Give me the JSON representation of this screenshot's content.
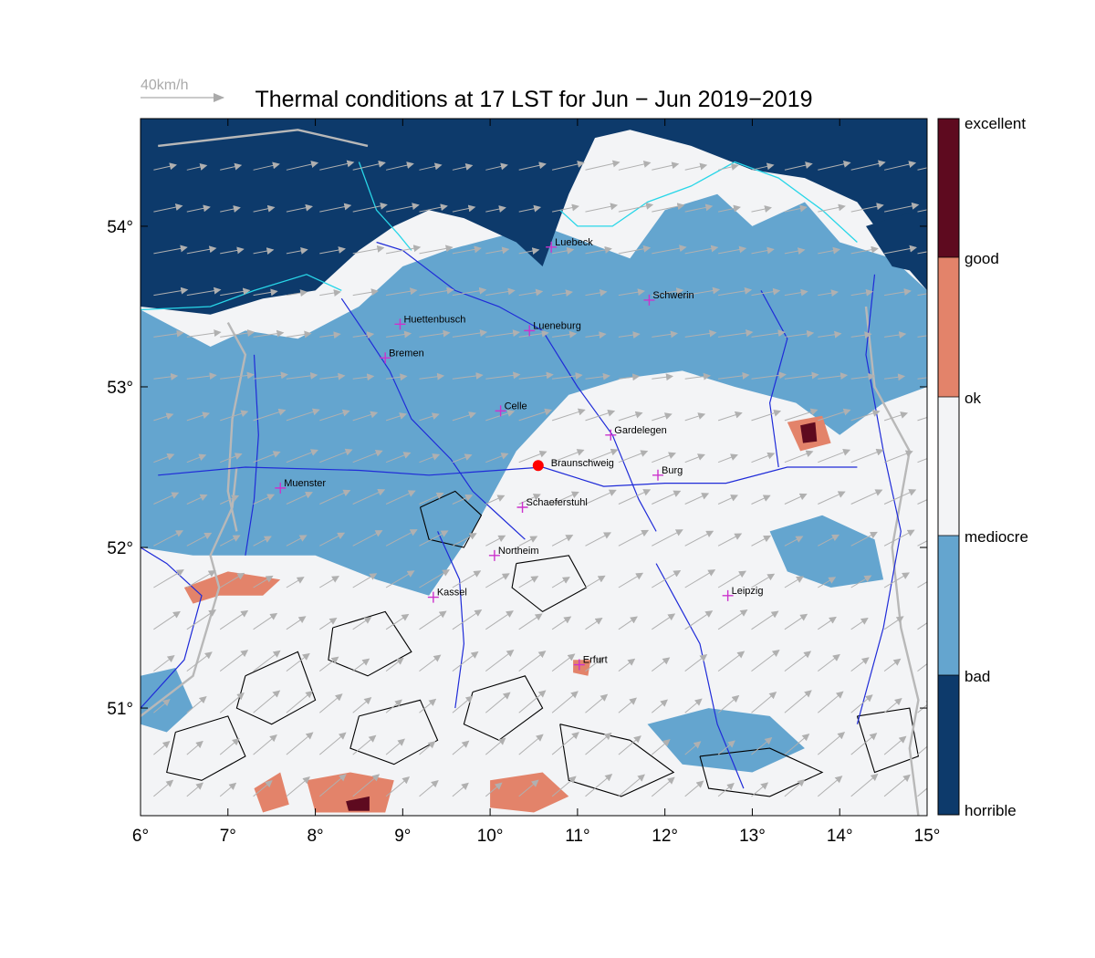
{
  "title": "Thermal conditions at 17 LST for Jun − Jun  2019−2019",
  "wind_legend": {
    "label": "40km/h"
  },
  "colors": {
    "horrible": "#0d3a6b",
    "bad": "#64a5cf",
    "mediocre": "#f3f4f6",
    "ok": "#f3f4f6",
    "good": "#e3836a",
    "excellent": "#5e0a1f",
    "rivers": "#1f2bd8",
    "coast": "#28d6e8",
    "borders": "#b8b8b8",
    "arrows": "#b0b0b0",
    "terrain_contours": "#000000",
    "city_marker": "#cc33cc",
    "reference_point": "#ff0000"
  },
  "map": {
    "lon_range": [
      6,
      15
    ],
    "lat_range": [
      50.33,
      54.67
    ],
    "x_ticks": [
      "6°",
      "7°",
      "8°",
      "9°",
      "10°",
      "11°",
      "12°",
      "13°",
      "14°",
      "15°"
    ],
    "x_tick_values": [
      6,
      7,
      8,
      9,
      10,
      11,
      12,
      13,
      14,
      15
    ],
    "y_ticks": [
      "51°",
      "52°",
      "53°",
      "54°"
    ],
    "y_tick_values": [
      51,
      52,
      53,
      54
    ]
  },
  "colorbar": {
    "labels": [
      "excellent",
      "good",
      "ok",
      "mediocre",
      "bad",
      "horrible"
    ]
  },
  "cities": [
    {
      "name": "Luebeck",
      "lon": 10.7,
      "lat": 53.87
    },
    {
      "name": "Schwerin",
      "lon": 11.82,
      "lat": 53.54
    },
    {
      "name": "Huettenbusch",
      "lon": 8.97,
      "lat": 53.39
    },
    {
      "name": "Lueneburg",
      "lon": 10.45,
      "lat": 53.35
    },
    {
      "name": "Bremen",
      "lon": 8.8,
      "lat": 53.18
    },
    {
      "name": "Celle",
      "lon": 10.12,
      "lat": 52.85
    },
    {
      "name": "Gardelegen",
      "lon": 11.38,
      "lat": 52.7
    },
    {
      "name": "Burg",
      "lon": 11.92,
      "lat": 52.45
    },
    {
      "name": "Muenster",
      "lon": 7.6,
      "lat": 52.37
    },
    {
      "name": "Schaeferstuhl",
      "lon": 10.37,
      "lat": 52.25
    },
    {
      "name": "Northeim",
      "lon": 10.05,
      "lat": 51.95
    },
    {
      "name": "Kassel",
      "lon": 9.35,
      "lat": 51.69
    },
    {
      "name": "Leipzig",
      "lon": 12.72,
      "lat": 51.7
    },
    {
      "name": "Erfurt",
      "lon": 11.02,
      "lat": 51.27
    }
  ],
  "reference_point": {
    "name": "Braunschweig",
    "lon": 10.55,
    "lat": 52.51
  },
  "regions": [
    {
      "class": "bad",
      "points": [
        [
          6,
          54.0
        ],
        [
          6,
          53.48
        ],
        [
          6.8,
          53.25
        ],
        [
          7.2,
          53.35
        ],
        [
          7.8,
          53.3
        ],
        [
          8.5,
          53.5
        ],
        [
          9.0,
          53.75
        ],
        [
          9.5,
          53.85
        ],
        [
          10.2,
          53.95
        ],
        [
          10.6,
          54.0
        ],
        [
          11.1,
          53.9
        ],
        [
          11.6,
          53.8
        ],
        [
          12.0,
          54.1
        ],
        [
          12.6,
          54.2
        ],
        [
          13.0,
          54.0
        ],
        [
          13.6,
          54.15
        ],
        [
          14.0,
          53.9
        ],
        [
          14.6,
          53.8
        ],
        [
          15,
          53.6
        ],
        [
          15,
          53.0
        ],
        [
          14.5,
          52.9
        ],
        [
          14.0,
          52.7
        ],
        [
          13.5,
          52.9
        ],
        [
          12.8,
          53.0
        ],
        [
          12.2,
          53.1
        ],
        [
          11.5,
          53.05
        ],
        [
          10.9,
          52.95
        ],
        [
          10.3,
          52.6
        ],
        [
          9.8,
          52.1
        ],
        [
          9.3,
          51.7
        ],
        [
          8.7,
          51.8
        ],
        [
          8.0,
          51.95
        ],
        [
          7.3,
          51.95
        ],
        [
          6.6,
          51.95
        ],
        [
          6,
          52.0
        ]
      ]
    },
    {
      "class": "bad",
      "points": [
        [
          6,
          51.2
        ],
        [
          6.4,
          51.25
        ],
        [
          6.6,
          51.0
        ],
        [
          6.3,
          50.85
        ],
        [
          6,
          50.9
        ]
      ]
    },
    {
      "class": "bad",
      "points": [
        [
          13.2,
          52.1
        ],
        [
          13.8,
          52.2
        ],
        [
          14.4,
          52.05
        ],
        [
          14.5,
          51.8
        ],
        [
          13.9,
          51.75
        ],
        [
          13.4,
          51.85
        ]
      ]
    },
    {
      "class": "bad",
      "points": [
        [
          11.8,
          50.9
        ],
        [
          12.5,
          51.0
        ],
        [
          13.2,
          50.95
        ],
        [
          13.6,
          50.75
        ],
        [
          13.0,
          50.6
        ],
        [
          12.2,
          50.65
        ]
      ]
    },
    {
      "class": "horrible",
      "points": [
        [
          6,
          54.67
        ],
        [
          15,
          54.67
        ],
        [
          15,
          53.6
        ],
        [
          14.6,
          53.85
        ],
        [
          14.2,
          54.15
        ],
        [
          13.6,
          54.3
        ],
        [
          13.0,
          54.35
        ],
        [
          12.3,
          54.5
        ],
        [
          11.6,
          54.6
        ],
        [
          11.2,
          54.55
        ],
        [
          10.9,
          54.2
        ],
        [
          10.6,
          53.75
        ],
        [
          10.3,
          53.9
        ],
        [
          9.7,
          54.05
        ],
        [
          9.3,
          54.1
        ],
        [
          8.9,
          54.0
        ],
        [
          8.5,
          53.85
        ],
        [
          8.0,
          53.6
        ],
        [
          7.4,
          53.55
        ],
        [
          6.8,
          53.45
        ],
        [
          6,
          53.5
        ]
      ]
    },
    {
      "class": "horrible",
      "points": [
        [
          14.3,
          54.0
        ],
        [
          14.9,
          54.1
        ],
        [
          15,
          53.7
        ],
        [
          14.6,
          53.75
        ]
      ]
    },
    {
      "class": "good",
      "points": [
        [
          6.5,
          51.75
        ],
        [
          7.0,
          51.85
        ],
        [
          7.6,
          51.8
        ],
        [
          7.4,
          51.7
        ],
        [
          6.9,
          51.7
        ],
        [
          6.6,
          51.65
        ]
      ]
    },
    {
      "class": "good",
      "points": [
        [
          7.3,
          50.5
        ],
        [
          7.6,
          50.6
        ],
        [
          7.7,
          50.4
        ],
        [
          7.4,
          50.35
        ]
      ]
    },
    {
      "class": "good",
      "points": [
        [
          7.9,
          50.55
        ],
        [
          8.4,
          50.6
        ],
        [
          8.9,
          50.55
        ],
        [
          8.8,
          50.35
        ],
        [
          8.0,
          50.35
        ]
      ]
    },
    {
      "class": "good",
      "points": [
        [
          10.0,
          50.55
        ],
        [
          10.6,
          50.6
        ],
        [
          10.9,
          50.45
        ],
        [
          10.5,
          50.35
        ],
        [
          10.0,
          50.38
        ]
      ]
    },
    {
      "class": "good",
      "points": [
        [
          13.4,
          52.78
        ],
        [
          13.8,
          52.82
        ],
        [
          13.9,
          52.65
        ],
        [
          13.55,
          52.6
        ]
      ]
    },
    {
      "class": "good",
      "points": [
        [
          10.95,
          51.3
        ],
        [
          11.15,
          51.3
        ],
        [
          11.12,
          51.2
        ],
        [
          10.95,
          51.22
        ]
      ]
    },
    {
      "class": "excellent",
      "points": [
        [
          13.55,
          52.76
        ],
        [
          13.72,
          52.78
        ],
        [
          13.74,
          52.66
        ],
        [
          13.58,
          52.65
        ]
      ]
    },
    {
      "class": "excellent",
      "points": [
        [
          8.35,
          50.42
        ],
        [
          8.62,
          50.45
        ],
        [
          8.62,
          50.36
        ],
        [
          8.38,
          50.36
        ]
      ]
    }
  ],
  "rivers": [
    [
      [
        10.4,
        52.05
      ],
      [
        10.0,
        52.25
      ],
      [
        9.8,
        52.35
      ],
      [
        9.55,
        52.55
      ],
      [
        9.1,
        52.8
      ],
      [
        8.85,
        53.1
      ],
      [
        8.55,
        53.35
      ],
      [
        8.3,
        53.55
      ]
    ],
    [
      [
        11.9,
        52.1
      ],
      [
        11.7,
        52.3
      ],
      [
        11.4,
        52.7
      ],
      [
        11.0,
        53.0
      ],
      [
        10.6,
        53.35
      ],
      [
        10.1,
        53.5
      ],
      [
        9.6,
        53.6
      ],
      [
        9.0,
        53.85
      ],
      [
        8.7,
        53.9
      ]
    ],
    [
      [
        7.2,
        51.95
      ],
      [
        7.3,
        52.3
      ],
      [
        7.35,
        52.7
      ],
      [
        7.3,
        53.2
      ]
    ],
    [
      [
        6.2,
        52.45
      ],
      [
        7.2,
        52.5
      ],
      [
        8.5,
        52.48
      ],
      [
        9.3,
        52.45
      ],
      [
        10.6,
        52.5
      ],
      [
        11.3,
        52.38
      ],
      [
        12.0,
        52.4
      ],
      [
        12.7,
        52.4
      ],
      [
        13.4,
        52.5
      ],
      [
        14.2,
        52.5
      ]
    ],
    [
      [
        14.2,
        50.9
      ],
      [
        14.5,
        51.5
      ],
      [
        14.7,
        52.1
      ],
      [
        14.5,
        52.6
      ],
      [
        14.3,
        53.2
      ],
      [
        14.4,
        53.7
      ]
    ],
    [
      [
        12.9,
        50.5
      ],
      [
        12.6,
        50.9
      ],
      [
        12.4,
        51.4
      ],
      [
        12.1,
        51.7
      ],
      [
        11.9,
        51.9
      ]
    ],
    [
      [
        9.6,
        51.0
      ],
      [
        9.7,
        51.4
      ],
      [
        9.65,
        51.8
      ],
      [
        9.4,
        52.1
      ]
    ],
    [
      [
        6.0,
        51.0
      ],
      [
        6.5,
        51.3
      ],
      [
        6.7,
        51.7
      ],
      [
        6.3,
        51.9
      ],
      [
        6.0,
        52.0
      ]
    ],
    [
      [
        13.3,
        52.5
      ],
      [
        13.2,
        52.9
      ],
      [
        13.4,
        53.3
      ],
      [
        13.1,
        53.6
      ]
    ]
  ],
  "coast": [
    [
      [
        8.5,
        54.4
      ],
      [
        8.7,
        54.1
      ],
      [
        8.95,
        53.95
      ],
      [
        9.1,
        53.85
      ]
    ],
    [
      [
        10.8,
        54.1
      ],
      [
        11.0,
        54.0
      ],
      [
        11.4,
        54.0
      ],
      [
        11.8,
        54.15
      ],
      [
        12.3,
        54.25
      ],
      [
        12.8,
        54.4
      ],
      [
        13.3,
        54.3
      ],
      [
        13.8,
        54.1
      ],
      [
        14.2,
        53.9
      ]
    ],
    [
      [
        6.0,
        53.48
      ],
      [
        6.8,
        53.5
      ],
      [
        7.3,
        53.6
      ],
      [
        7.9,
        53.7
      ],
      [
        8.3,
        53.6
      ]
    ]
  ],
  "borders": [
    [
      [
        6.2,
        54.5
      ],
      [
        7.8,
        54.6
      ],
      [
        8.6,
        54.5
      ]
    ],
    [
      [
        7.1,
        52.1
      ],
      [
        7.0,
        52.35
      ],
      [
        7.05,
        52.8
      ],
      [
        7.2,
        53.2
      ],
      [
        7.0,
        53.4
      ]
    ],
    [
      [
        6.0,
        50.95
      ],
      [
        6.6,
        51.2
      ],
      [
        6.9,
        51.75
      ],
      [
        6.8,
        51.95
      ],
      [
        7.05,
        52.25
      ],
      [
        7.1,
        52.5
      ]
    ],
    [
      [
        14.9,
        50.33
      ],
      [
        14.8,
        50.75
      ],
      [
        14.9,
        51.05
      ],
      [
        14.7,
        51.5
      ],
      [
        14.6,
        52.0
      ],
      [
        14.8,
        52.6
      ],
      [
        14.4,
        53.0
      ],
      [
        14.3,
        53.5
      ]
    ]
  ],
  "contours": [
    [
      [
        9.2,
        52.25
      ],
      [
        9.6,
        52.35
      ],
      [
        9.9,
        52.2
      ],
      [
        9.7,
        52.0
      ],
      [
        9.3,
        52.05
      ],
      [
        9.2,
        52.25
      ]
    ],
    [
      [
        10.3,
        51.9
      ],
      [
        10.9,
        51.95
      ],
      [
        11.1,
        51.75
      ],
      [
        10.6,
        51.6
      ],
      [
        10.25,
        51.75
      ],
      [
        10.3,
        51.9
      ]
    ],
    [
      [
        8.2,
        51.5
      ],
      [
        8.8,
        51.6
      ],
      [
        9.1,
        51.35
      ],
      [
        8.6,
        51.2
      ],
      [
        8.15,
        51.3
      ],
      [
        8.2,
        51.5
      ]
    ],
    [
      [
        7.2,
        51.2
      ],
      [
        7.8,
        51.35
      ],
      [
        8.0,
        51.05
      ],
      [
        7.5,
        50.9
      ],
      [
        7.1,
        51.0
      ],
      [
        7.2,
        51.2
      ]
    ],
    [
      [
        9.8,
        51.1
      ],
      [
        10.4,
        51.2
      ],
      [
        10.6,
        51.0
      ],
      [
        10.1,
        50.8
      ],
      [
        9.7,
        50.9
      ],
      [
        9.8,
        51.1
      ]
    ],
    [
      [
        10.8,
        50.9
      ],
      [
        11.6,
        50.8
      ],
      [
        12.1,
        50.6
      ],
      [
        11.5,
        50.45
      ],
      [
        10.9,
        50.55
      ],
      [
        10.8,
        50.9
      ]
    ],
    [
      [
        12.4,
        50.7
      ],
      [
        13.2,
        50.75
      ],
      [
        13.8,
        50.6
      ],
      [
        13.2,
        50.45
      ],
      [
        12.5,
        50.5
      ],
      [
        12.4,
        50.7
      ]
    ],
    [
      [
        6.4,
        50.85
      ],
      [
        7.0,
        50.95
      ],
      [
        7.2,
        50.7
      ],
      [
        6.7,
        50.55
      ],
      [
        6.3,
        50.6
      ],
      [
        6.4,
        50.85
      ]
    ],
    [
      [
        8.5,
        50.95
      ],
      [
        9.2,
        51.05
      ],
      [
        9.4,
        50.8
      ],
      [
        8.9,
        50.65
      ],
      [
        8.4,
        50.75
      ],
      [
        8.5,
        50.95
      ]
    ],
    [
      [
        14.2,
        50.95
      ],
      [
        14.8,
        51.0
      ],
      [
        14.9,
        50.7
      ],
      [
        14.4,
        50.6
      ],
      [
        14.2,
        50.95
      ]
    ]
  ]
}
